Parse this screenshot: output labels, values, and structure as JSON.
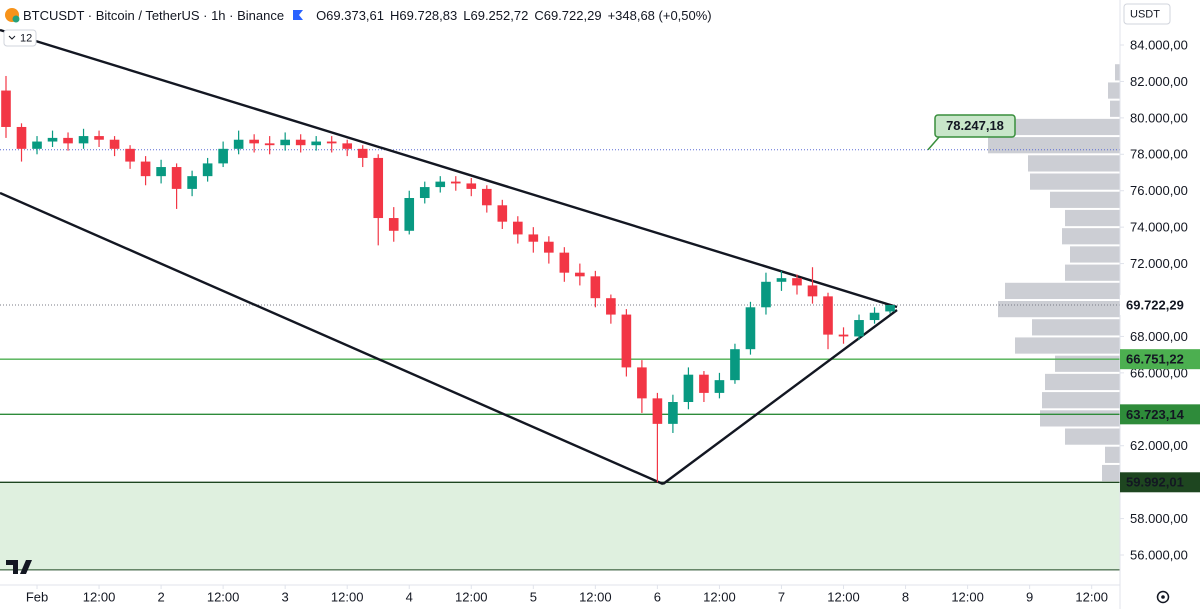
{
  "chart_data": {
    "type": "candlestick",
    "symbol": "BTCUSDT · Bitcoin / TetherUS · 1h · Binance",
    "ohlc_text": [
      "O69.373,61",
      "H69.728,83",
      "L69.252,72",
      "C69.722,29"
    ],
    "change_text": "+348,68 (+0,50%)",
    "indicator_count": "12",
    "currency": "USDT",
    "xlim": [
      -7.16,
      209.48
    ],
    "ylim": [
      54353,
      86471
    ],
    "grid": false,
    "up_color": "#089981",
    "down_color": "#f23645",
    "x": [
      -6,
      -3,
      0,
      3,
      6,
      9,
      12,
      15,
      18,
      21,
      24,
      27,
      30,
      33,
      36,
      39,
      42,
      45,
      48,
      51,
      54,
      57,
      60,
      63,
      66,
      69,
      72,
      75,
      78,
      81,
      84,
      87,
      90,
      93,
      96,
      99,
      102,
      105,
      108,
      111,
      114,
      117,
      120,
      123,
      126,
      129,
      132,
      135,
      138,
      141,
      144,
      147,
      150,
      153,
      156,
      159,
      162,
      165
    ],
    "open": [
      81500,
      79500,
      78300,
      78700,
      78900,
      78600,
      79000,
      78800,
      78300,
      77600,
      76800,
      77300,
      76100,
      76800,
      77500,
      78300,
      78800,
      78600,
      78500,
      78800,
      78500,
      78700,
      78600,
      78300,
      77800,
      74500,
      73800,
      75600,
      76200,
      76500,
      76400,
      76100,
      75200,
      74300,
      73600,
      73200,
      72600,
      71500,
      71300,
      70100,
      69200,
      66300,
      64600,
      63200,
      64400,
      65900,
      64900,
      65600,
      67300,
      69600,
      71000,
      71200,
      70800,
      70200,
      68100,
      68000,
      68900,
      69373.61
    ],
    "high": [
      82300,
      79700,
      79000,
      79300,
      79200,
      79400,
      79300,
      79000,
      78500,
      77900,
      77700,
      77500,
      77100,
      77800,
      78700,
      79300,
      79100,
      79000,
      79200,
      79100,
      79000,
      79000,
      78800,
      78500,
      78000,
      75100,
      76000,
      76500,
      76800,
      76800,
      76700,
      76300,
      75500,
      74600,
      74000,
      73500,
      72900,
      72000,
      71600,
      70300,
      69500,
      66700,
      64900,
      64800,
      66300,
      66100,
      66000,
      67600,
      69900,
      71500,
      71600,
      71400,
      71800,
      70400,
      68500,
      69200,
      69600,
      69728.83
    ],
    "low": [
      78900,
      77600,
      78000,
      78400,
      78200,
      78300,
      78400,
      77900,
      77200,
      76300,
      76400,
      75000,
      75700,
      76500,
      77300,
      78000,
      78100,
      78000,
      78200,
      78100,
      78200,
      78100,
      77900,
      77300,
      73000,
      73200,
      73600,
      75300,
      75900,
      76000,
      75700,
      74800,
      73900,
      73100,
      72600,
      72000,
      71000,
      70800,
      69600,
      68700,
      65800,
      63800,
      59992,
      62700,
      64000,
      64400,
      64600,
      65400,
      67000,
      69200,
      70500,
      70300,
      69800,
      67300,
      67600,
      67800,
      68700,
      69252.72
    ],
    "close": [
      79500,
      78300,
      78700,
      78900,
      78600,
      79000,
      78800,
      78300,
      77600,
      76800,
      77300,
      76100,
      76800,
      77500,
      78300,
      78800,
      78600,
      78500,
      78800,
      78500,
      78700,
      78600,
      78300,
      77800,
      74500,
      73800,
      75600,
      76200,
      76500,
      76400,
      76100,
      75200,
      74300,
      73600,
      73200,
      72600,
      71500,
      71300,
      70100,
      69200,
      66300,
      64600,
      63200,
      64400,
      65900,
      64900,
      65600,
      67300,
      69600,
      71000,
      71200,
      70800,
      70200,
      68100,
      68000,
      68900,
      69300,
      69722.29
    ],
    "yticks": [
      {
        "value": 84000,
        "label": "84.000,00"
      },
      {
        "value": 82000,
        "label": "82.000,00"
      },
      {
        "value": 80000,
        "label": "80.000,00"
      },
      {
        "value": 78000,
        "label": "78.000,00"
      },
      {
        "value": 76000,
        "label": "76.000,00"
      },
      {
        "value": 74000,
        "label": "74.000,00"
      },
      {
        "value": 72000,
        "label": "72.000,00"
      },
      {
        "value": 70000,
        "label": "70.000,00"
      },
      {
        "value": 68000,
        "label": "68.000,00"
      },
      {
        "value": 66000,
        "label": "66.000,00"
      },
      {
        "value": 64000,
        "label": "64.000,00"
      },
      {
        "value": 62000,
        "label": "62.000,00"
      },
      {
        "value": 60000,
        "label": "60.000,00"
      },
      {
        "value": 58000,
        "label": "58.000,00"
      },
      {
        "value": 56000,
        "label": "56.000,00"
      }
    ],
    "xticks": [
      {
        "value": 0,
        "label": "Feb"
      },
      {
        "value": 12,
        "label": "12:00"
      },
      {
        "value": 24,
        "label": "2"
      },
      {
        "value": 36,
        "label": "12:00"
      },
      {
        "value": 48,
        "label": "3"
      },
      {
        "value": 60,
        "label": "12:00"
      },
      {
        "value": 72,
        "label": "4"
      },
      {
        "value": 84,
        "label": "12:00"
      },
      {
        "value": 96,
        "label": "5"
      },
      {
        "value": 108,
        "label": "12:00"
      },
      {
        "value": 120,
        "label": "6"
      },
      {
        "value": 132,
        "label": "12:00"
      },
      {
        "value": 144,
        "label": "7"
      },
      {
        "value": 156,
        "label": "12:00"
      },
      {
        "value": 168,
        "label": "8"
      },
      {
        "value": 180,
        "label": "12:00"
      },
      {
        "value": 192,
        "label": "9"
      },
      {
        "value": 204,
        "label": "12:00"
      }
    ],
    "hlines": [
      {
        "value": 66751.22,
        "label": "66.751,22",
        "color": "#4caf50"
      },
      {
        "value": 63723.14,
        "label": "63.723,14",
        "color": "#2e8b3a"
      },
      {
        "value": 59992.01,
        "label": "59.992,01",
        "color": "#1e4620"
      }
    ],
    "zone": {
      "from": 59992.01,
      "to": 55180,
      "color": "#dff0df",
      "edge_color": "#1e4620"
    },
    "last_price": {
      "value": 69722.29,
      "label": "69.722,29"
    },
    "callout": {
      "value": 78247.18,
      "label": "78.247,18"
    },
    "volume_profile": {
      "color": "#c3c6cc",
      "prices": [
        82500,
        81500,
        80500,
        79500,
        78500,
        77500,
        76500,
        75500,
        74500,
        73500,
        72500,
        71500,
        70500,
        69500,
        68500,
        67500,
        66500,
        65500,
        64500,
        63500,
        62500,
        61500,
        60500
      ],
      "values": [
        5,
        12,
        10,
        125,
        132,
        92,
        90,
        70,
        55,
        58,
        50,
        55,
        115,
        122,
        88,
        105,
        65,
        75,
        78,
        80,
        55,
        15,
        18
      ]
    }
  }
}
